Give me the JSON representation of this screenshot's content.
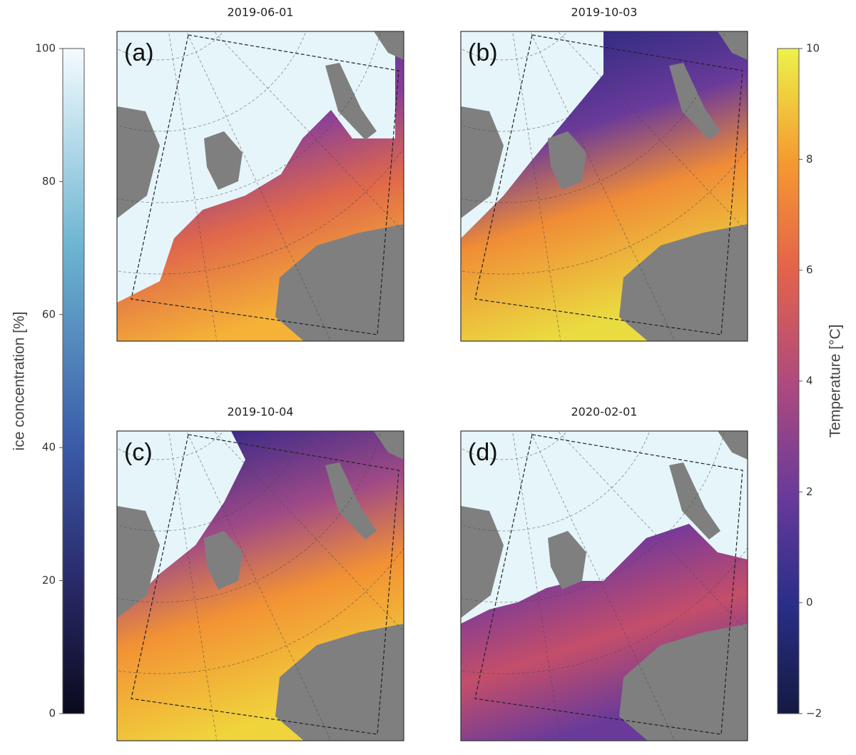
{
  "panels": [
    {
      "date": "2019-06-01",
      "label": "(a)"
    },
    {
      "date": "2019-10-03",
      "label": "(b)"
    },
    {
      "date": "2019-10-04",
      "label": "(c)"
    },
    {
      "date": "2020-02-01",
      "label": "(d)"
    }
  ],
  "colorbars": [
    {
      "label": "ice concentration [%]",
      "lim": [
        0,
        100
      ],
      "ticks": [
        0,
        20,
        40,
        60,
        80,
        100
      ]
    },
    {
      "label": "Temperature [°C]",
      "lim": [
        -2,
        10
      ],
      "ticks": [
        {
          "value": -2,
          "label": "−2"
        },
        0,
        2,
        4,
        6,
        8,
        10
      ]
    }
  ]
}
